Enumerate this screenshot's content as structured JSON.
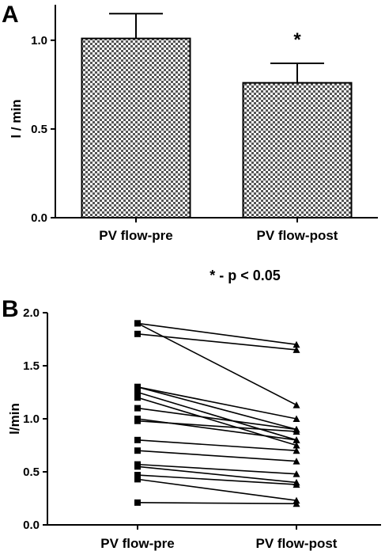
{
  "chart_data": [
    {
      "panel_label": "A",
      "type": "bar",
      "categories": [
        "PV flow-pre",
        "PV flow-post"
      ],
      "values": [
        1.01,
        0.76
      ],
      "error_upper": [
        1.15,
        0.87
      ],
      "ylabel": "l / min",
      "ylim": [
        0,
        1.2
      ],
      "yticks": [
        "0.0",
        "0.5",
        "1.0"
      ],
      "significance_marker": "*",
      "significance_on": "PV flow-post",
      "bar_fill": "checkered grey"
    },
    {
      "panel_label": "B",
      "type": "line",
      "categories": [
        "PV flow-pre",
        "PV flow-post"
      ],
      "ylabel": "l/min",
      "ylim": [
        0,
        2.0
      ],
      "yticks": [
        "0.0",
        "0.5",
        "1.0",
        "1.5",
        "2.0"
      ],
      "pre_marker": "square",
      "post_marker": "triangle",
      "pairs": [
        [
          1.9,
          1.7
        ],
        [
          1.9,
          1.13
        ],
        [
          1.8,
          1.65
        ],
        [
          1.3,
          1.0
        ],
        [
          1.3,
          0.9
        ],
        [
          1.25,
          0.8
        ],
        [
          1.2,
          0.75
        ],
        [
          1.1,
          0.9
        ],
        [
          1.0,
          0.8
        ],
        [
          0.98,
          0.88
        ],
        [
          0.8,
          0.7
        ],
        [
          0.7,
          0.6
        ],
        [
          0.57,
          0.48
        ],
        [
          0.55,
          0.4
        ],
        [
          0.47,
          0.38
        ],
        [
          0.43,
          0.23
        ],
        [
          0.21,
          0.2
        ]
      ]
    }
  ],
  "footnote": "* - p < 0.05"
}
